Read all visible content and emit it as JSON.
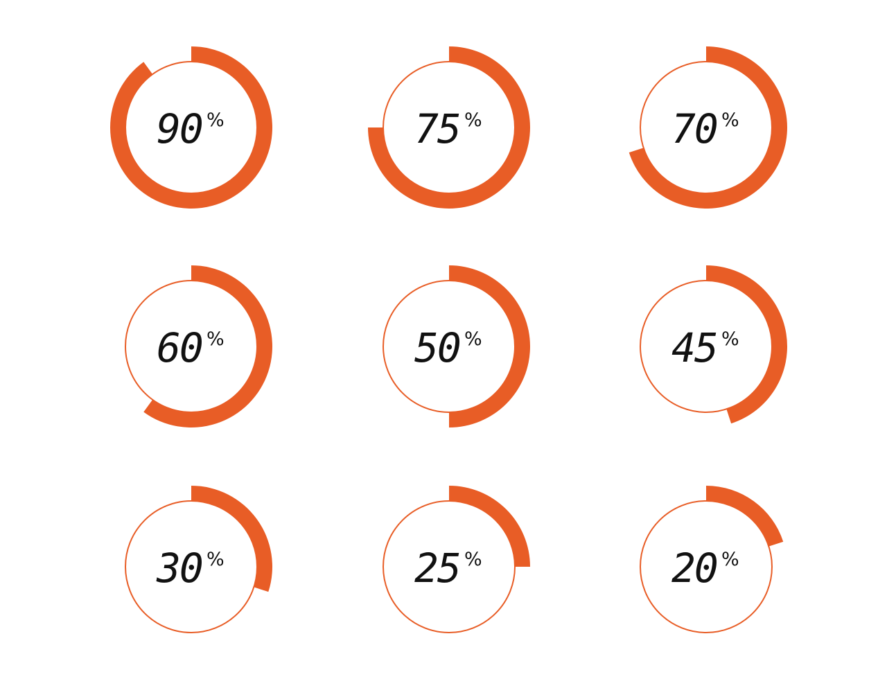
{
  "colors": {
    "accent": "#e85d26",
    "text": "#111111",
    "background": "#ffffff"
  },
  "gauges": [
    {
      "percent": 90,
      "value_label": "90",
      "unit": "%"
    },
    {
      "percent": 75,
      "value_label": "75",
      "unit": "%"
    },
    {
      "percent": 70,
      "value_label": "70",
      "unit": "%"
    },
    {
      "percent": 60,
      "value_label": "60",
      "unit": "%"
    },
    {
      "percent": 50,
      "value_label": "50",
      "unit": "%"
    },
    {
      "percent": 45,
      "value_label": "45",
      "unit": "%"
    },
    {
      "percent": 30,
      "value_label": "30",
      "unit": "%"
    },
    {
      "percent": 25,
      "value_label": "25",
      "unit": "%"
    },
    {
      "percent": 20,
      "value_label": "20",
      "unit": "%"
    }
  ]
}
